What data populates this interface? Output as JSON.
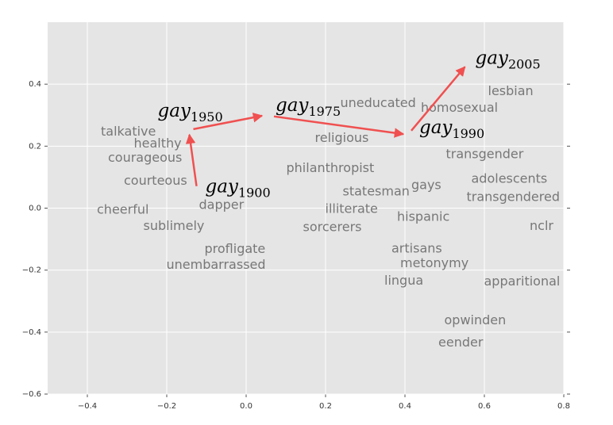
{
  "chart_data": {
    "type": "scatter",
    "xlim": [
      -0.5,
      0.8
    ],
    "ylim": [
      -0.6,
      0.6
    ],
    "xticks": [
      {
        "value": -0.4,
        "label": "−0.4"
      },
      {
        "value": -0.2,
        "label": "−0.2"
      },
      {
        "value": 0,
        "label": "0.0"
      },
      0.2,
      0.4,
      0.6,
      0.8
    ],
    "yticks": [
      {
        "value": -0.6,
        "label": "−0.6"
      },
      {
        "value": -0.4,
        "label": "−0.4"
      },
      {
        "value": -0.2,
        "label": "−0.2"
      },
      {
        "value": 0,
        "label": "0.0"
      },
      0.2,
      0.4
    ],
    "grid": true,
    "text_color": "#777777",
    "arrow_color": "#f05050",
    "background": "#e5e5e5",
    "points": [
      {
        "label": "talkative",
        "x": -0.366,
        "y": 0.234
      },
      {
        "label": "healthy",
        "x": -0.283,
        "y": 0.196
      },
      {
        "label": "courageous",
        "x": -0.348,
        "y": 0.15
      },
      {
        "label": "courteous",
        "x": -0.308,
        "y": 0.076
      },
      {
        "label": "cheerful",
        "x": -0.376,
        "y": -0.018
      },
      {
        "label": "sublimely",
        "x": -0.259,
        "y": -0.071
      },
      {
        "label": "dapper",
        "x": -0.119,
        "y": -0.003
      },
      {
        "label": "profligate",
        "x": -0.105,
        "y": -0.145
      },
      {
        "label": "unembarrassed",
        "x": -0.201,
        "y": -0.196
      },
      {
        "label": "uneducated",
        "x": 0.237,
        "y": 0.326
      },
      {
        "label": "religious",
        "x": 0.173,
        "y": 0.214
      },
      {
        "label": "philanthropist",
        "x": 0.101,
        "y": 0.117
      },
      {
        "label": "statesman",
        "x": 0.243,
        "y": 0.041
      },
      {
        "label": "illiterate",
        "x": 0.199,
        "y": -0.015
      },
      {
        "label": "sorcerers",
        "x": 0.143,
        "y": -0.074
      },
      {
        "label": "homosexual",
        "x": 0.44,
        "y": 0.311
      },
      {
        "label": "lesbian",
        "x": 0.609,
        "y": 0.364
      },
      {
        "label": "transgender",
        "x": 0.503,
        "y": 0.161
      },
      {
        "label": "adolescents",
        "x": 0.567,
        "y": 0.082
      },
      {
        "label": "transgendered",
        "x": 0.555,
        "y": 0.023
      },
      {
        "label": "gays",
        "x": 0.416,
        "y": 0.061
      },
      {
        "label": "hispanic",
        "x": 0.38,
        "y": -0.041
      },
      {
        "label": "nclr",
        "x": 0.714,
        "y": -0.071
      },
      {
        "label": "artisans",
        "x": 0.366,
        "y": -0.143
      },
      {
        "label": "metonymy",
        "x": 0.388,
        "y": -0.191
      },
      {
        "label": "lingua",
        "x": 0.348,
        "y": -0.247
      },
      {
        "label": "apparitional",
        "x": 0.599,
        "y": -0.25
      },
      {
        "label": "opwinden",
        "x": 0.499,
        "y": -0.375
      },
      {
        "label": "eender",
        "x": 0.484,
        "y": -0.446
      }
    ],
    "highlights": [
      {
        "word": "gay",
        "sub": "1900",
        "x": -0.103,
        "y": 0.051
      },
      {
        "word": "gay",
        "sub": "1950",
        "x": -0.223,
        "y": 0.296
      },
      {
        "word": "gay",
        "sub": "1975",
        "x": 0.074,
        "y": 0.313
      },
      {
        "word": "gay",
        "sub": "1990",
        "x": 0.436,
        "y": 0.242
      },
      {
        "word": "gay",
        "sub": "2005",
        "x": 0.577,
        "y": 0.466
      }
    ],
    "arrows": [
      {
        "x1": -0.125,
        "y1": 0.071,
        "x2": -0.143,
        "y2": 0.237
      },
      {
        "x1": -0.133,
        "y1": 0.255,
        "x2": 0.04,
        "y2": 0.298
      },
      {
        "x1": 0.07,
        "y1": 0.296,
        "x2": 0.396,
        "y2": 0.239
      },
      {
        "x1": 0.416,
        "y1": 0.25,
        "x2": 0.551,
        "y2": 0.456
      }
    ]
  }
}
